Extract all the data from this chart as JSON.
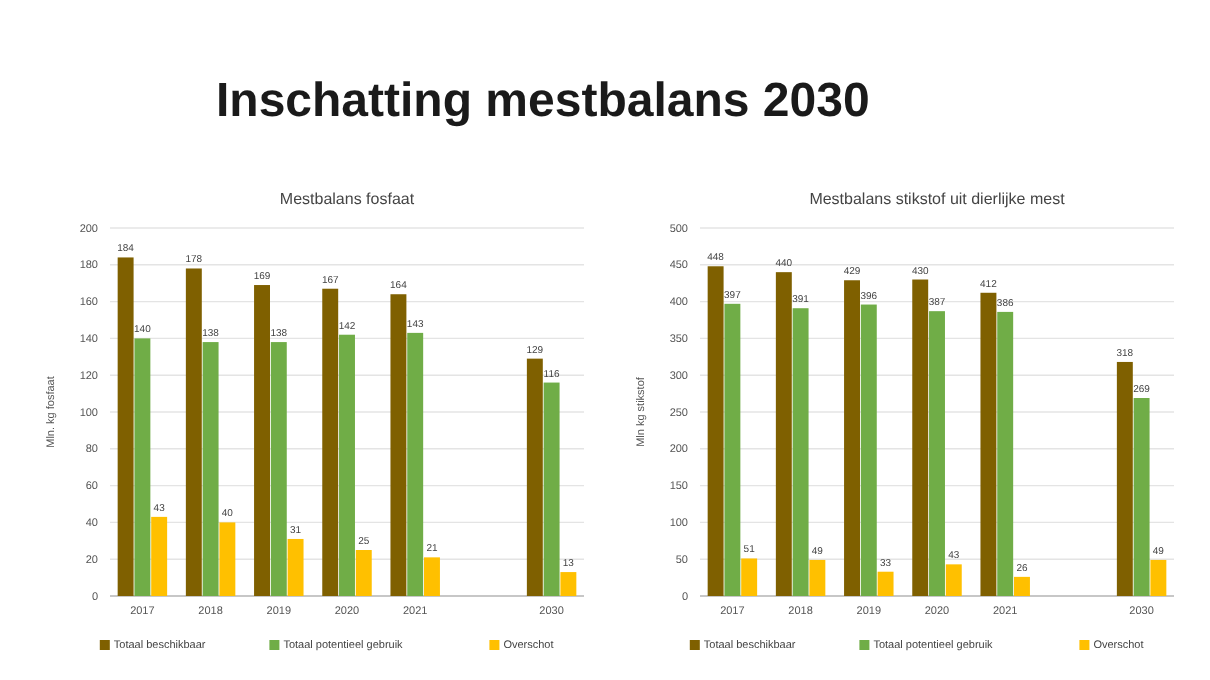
{
  "chart_data": [
    {
      "type": "other",
      "title": "Inschatting mestbalans 2030"
    },
    {
      "type": "bar",
      "title": "Mestbalans fosfaat",
      "ylabel": "Mln. kg fosfaat",
      "categories": [
        "2017",
        "2018",
        "2019",
        "2020",
        "2021",
        null,
        "2030"
      ],
      "series": [
        {
          "name": "Totaal beschikbaar",
          "color": "#7f6000",
          "values": [
            184,
            178,
            169,
            167,
            164,
            null,
            129
          ]
        },
        {
          "name": "Totaal potentieel gebruik",
          "color": "#70ad47",
          "values": [
            140,
            138,
            138,
            142,
            143,
            null,
            116
          ]
        },
        {
          "name": "Overschot",
          "color": "#ffc000",
          "values": [
            43,
            40,
            31,
            25,
            21,
            null,
            13
          ]
        }
      ],
      "ylim": [
        0,
        200
      ],
      "yticks": [
        0,
        20,
        40,
        60,
        80,
        100,
        120,
        140,
        160,
        180,
        200
      ],
      "grid": "y",
      "legend": "bottom",
      "data_labels": true
    },
    {
      "type": "bar",
      "title": "Mestbalans stikstof uit dierlijke mest",
      "ylabel": "Mln kg stikstof",
      "categories": [
        "2017",
        "2018",
        "2019",
        "2020",
        "2021",
        null,
        "2030"
      ],
      "series": [
        {
          "name": "Totaal beschikbaar",
          "color": "#7f6000",
          "values": [
            448,
            440,
            429,
            430,
            412,
            null,
            318
          ]
        },
        {
          "name": "Totaal potentieel gebruik",
          "color": "#70ad47",
          "values": [
            397,
            391,
            396,
            387,
            386,
            null,
            269
          ]
        },
        {
          "name": "Overschot",
          "color": "#ffc000",
          "values": [
            51,
            49,
            33,
            43,
            26,
            null,
            49
          ]
        }
      ],
      "ylim": [
        0,
        500
      ],
      "yticks": [
        0,
        50,
        100,
        150,
        200,
        250,
        300,
        350,
        400,
        450,
        500
      ],
      "grid": "y",
      "legend": "bottom",
      "data_labels": true
    }
  ]
}
